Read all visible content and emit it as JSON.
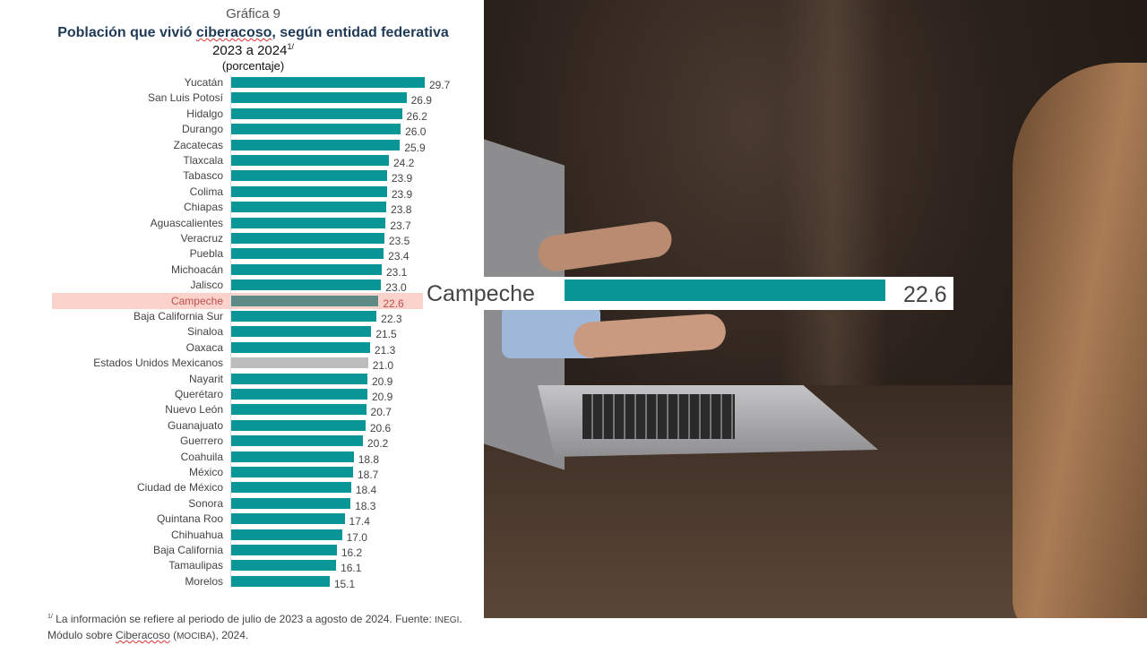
{
  "chart_data": {
    "type": "bar",
    "orientation": "horizontal",
    "label": "Gráfica 9",
    "title": "Población que vivió ciberacoso, según entidad federativa",
    "subtitle": "2023 a 2024",
    "subtitle_note_marker": "1/",
    "unit_label": "(porcentaje)",
    "xlim": [
      0,
      30
    ],
    "categories": [
      "Yucatán",
      "San Luis Potosí",
      "Hidalgo",
      "Durango",
      "Zacatecas",
      "Tlaxcala",
      "Tabasco",
      "Colima",
      "Chiapas",
      "Aguascalientes",
      "Veracruz",
      "Puebla",
      "Michoacán",
      "Jalisco",
      "Campeche",
      "Baja California Sur",
      "Sinaloa",
      "Oaxaca",
      "Estados Unidos Mexicanos",
      "Nayarit",
      "Querétaro",
      "Nuevo León",
      "Guanajuato",
      "Guerrero",
      "Coahuila",
      "México",
      "Ciudad de México",
      "Sonora",
      "Quintana Roo",
      "Chihuahua",
      "Baja California",
      "Tamaulipas",
      "Morelos"
    ],
    "values": [
      29.7,
      26.9,
      26.2,
      26.0,
      25.9,
      24.2,
      23.9,
      23.9,
      23.8,
      23.7,
      23.5,
      23.4,
      23.1,
      23.0,
      22.6,
      22.3,
      21.5,
      21.3,
      21.0,
      20.9,
      20.9,
      20.7,
      20.6,
      20.2,
      18.8,
      18.7,
      18.4,
      18.3,
      17.4,
      17.0,
      16.2,
      16.1,
      15.1
    ],
    "value_labels": [
      "29.7",
      "26.9",
      "26.2",
      "26.0",
      "25.9",
      "24.2",
      "23.9",
      "23.9",
      "23.8",
      "23.7",
      "23.5",
      "23.4",
      "23.1",
      "23.0",
      "22.6",
      "22.3",
      "21.5",
      "21.3",
      "21.0",
      "20.9",
      "20.9",
      "20.7",
      "20.6",
      "20.2",
      "18.8",
      "18.7",
      "18.4",
      "18.3",
      "17.4",
      "17.0",
      "16.2",
      "16.1",
      "15.1"
    ],
    "highlight": "Campeche",
    "national": "Estados Unidos Mexicanos",
    "colors": {
      "bar": "#0a9696",
      "national": "#bdbdbd",
      "highlight_bar": "#5e8a87",
      "highlight_band": "#f9c9c2"
    }
  },
  "footnote": {
    "marker": "1/",
    "text_a": " La información se refiere al periodo de julio de 2023 a agosto de 2024. Fuente: ",
    "inegi": "INEGI",
    "text_b": ".",
    "text_c": "Módulo sobre ",
    "ciberacoso": "Ciberacoso",
    "text_d": " (",
    "mociba": "MOCIBA",
    "text_e": "), 2024."
  },
  "callout": {
    "label": "Campeche",
    "value": 22.6,
    "value_label": "22.6"
  }
}
